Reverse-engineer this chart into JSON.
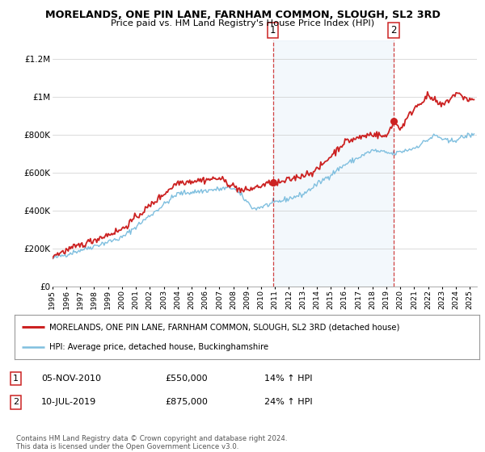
{
  "title": "MORELANDS, ONE PIN LANE, FARNHAM COMMON, SLOUGH, SL2 3RD",
  "subtitle": "Price paid vs. HM Land Registry's House Price Index (HPI)",
  "ylim": [
    0,
    1300000
  ],
  "yticks": [
    0,
    200000,
    400000,
    600000,
    800000,
    1000000,
    1200000
  ],
  "ytick_labels": [
    "£0",
    "£200K",
    "£400K",
    "£600K",
    "£800K",
    "£1M",
    "£1.2M"
  ],
  "xlim_start": 1995.0,
  "xlim_end": 2025.5,
  "hpi_color": "#7fbfdf",
  "price_color": "#cc2222",
  "sale1_x": 2010.845,
  "sale1_y": 550000,
  "sale2_x": 2019.52,
  "sale2_y": 875000,
  "vline_color": "#cc2222",
  "shade_color": "#daeaf7",
  "legend1_label": "MORELANDS, ONE PIN LANE, FARNHAM COMMON, SLOUGH, SL2 3RD (detached house)",
  "legend2_label": "HPI: Average price, detached house, Buckinghamshire",
  "table_row1": [
    "1",
    "05-NOV-2010",
    "£550,000",
    "14% ↑ HPI"
  ],
  "table_row2": [
    "2",
    "10-JUL-2019",
    "£875,000",
    "24% ↑ HPI"
  ],
  "footer": "Contains HM Land Registry data © Crown copyright and database right 2024.\nThis data is licensed under the Open Government Licence v3.0.",
  "background_color": "#ffffff"
}
